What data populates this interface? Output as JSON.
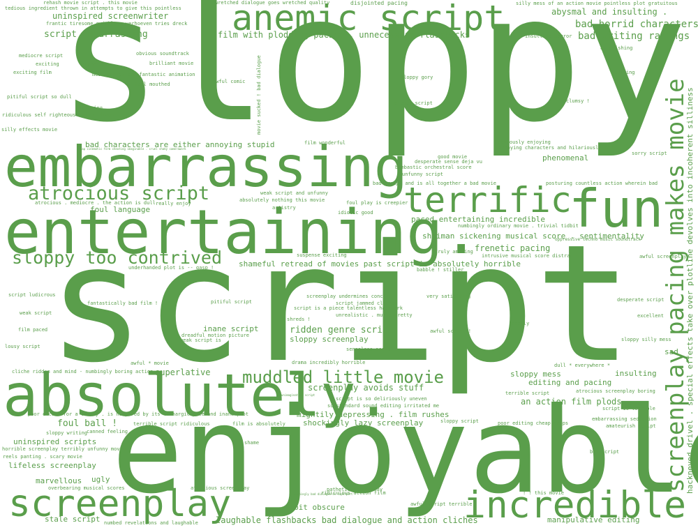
{
  "color": "#5a9e4b",
  "words": [
    "sloppy",
    "script",
    "enjoyable",
    "absolutely.",
    "entertaining.",
    "embarrassing",
    "anemic script",
    "fun",
    "terrific",
    "screenplay",
    "incredible",
    "screenplay pacing makes movie",
    "hackneyed drivel . special effects take over plotline devolves into incoherent silliness",
    "muddled little movie",
    "atrocious script",
    "sloppy too contrived",
    "movie sucked ! bad dialogue",
    "rehash movie script . this movie",
    "wretched dialogue goes wretched quality",
    "disjointed pacing",
    "silly mess of an action movie pointless plot gratuitous",
    "tedious ingredient thrown in attempts to give this pointless",
    "uninspired screenwriter",
    "abysmal and insulting .",
    "frantic tiresome quickly . verhoeven tries dreck",
    "bad horrid characters",
    "script embarrassing",
    "film with plodding pacing , unnecessary flashbacks",
    "insulting horror",
    "bad writing ratings",
    "mediocre script",
    "obvious soundtrack",
    "astonishing",
    "exciting",
    "paced",
    "brilliant movie",
    "exciting film",
    "mess script and fantastic animation",
    "editing",
    "awful comic",
    "foul mouthed",
    "sloppy gory",
    "pitiful script so dull",
    "clever script",
    "clumsy !",
    "sickening",
    "ridiculous self righteous finale drags",
    "silly effects movie",
    "film wonderful",
    "obviously enjoying",
    "bad characters are either annoying stupid",
    "annoying characters and hilariously bad",
    "sorry script",
    "cheap cinematic form cheating imaginable . cruel shaky camerawork",
    "good movie",
    "desperate sense deja vu",
    "bombastic orchestral score",
    "phenomenal",
    "unfunny script",
    "bad script and is all together a bad movie",
    "posturing countless action wherein bad",
    "weak script and unfunny",
    "foul language",
    "absolutely nothing this movie",
    "atrocious . mediocre . the action is dull",
    "really enjoy",
    "foul play is creepier",
    "artistry",
    "idiotic good",
    "paced entertaining incredible",
    "numbingly ordinary movie . trivial tidbit",
    "shaiman sickening musical score . sentimentality",
    "oppressive techno music soundtrack",
    "frenetic pacing",
    "truly amazing",
    "awful screenplay",
    "suspense exciting",
    "intrusive musical score distracts",
    "underhanded plot is -- gasp !",
    "shameful retread of movies past script is absolutely horrible",
    "babble ! stiller",
    "script ludicrous",
    "screenplay undermines conceit",
    "very satisfying",
    "desperate script",
    "fantastically bad film !",
    "pitiful script",
    "script jammed cliches",
    "script is a piece talentless hackwork",
    "unrealistic . music pretty",
    "weak script",
    "excellent",
    "shreds !",
    "really",
    "film paced",
    "inane script",
    "ridden genre script",
    "awful script !",
    "dreadful motion picture",
    "weak script is",
    "sloppy screenplay",
    "sloppy silly mess",
    "lousy script",
    "senseless script",
    "sad",
    "awful * movie",
    "drama incredibly horrible",
    "dull * everywhere *",
    "cliche ridden and mind - numbingly boring action",
    "superlative",
    "sloppy mess",
    "insulting",
    "editing and pacing",
    "screenplay avoids stuff",
    "terrible script",
    "atrocious screenplay boring",
    "unimaginative script",
    "script is so deliriously uneven",
    "an action film plods",
    "substandard sound editing irritated me",
    "script is terrible",
    "poor excuse for a comedy . is hampered by its lethargic pace and inane plot",
    "mightily depressing . film rushes",
    "embarrassing seduction",
    "foul ball !",
    "terrible script ridiculous",
    "film is absolutely",
    "shockingly lazy screenplay",
    "sloppy script",
    "poor editing cheap props",
    "amateurish script",
    "sloppy writing",
    "canned feeling",
    "uninspired scripts",
    "shame",
    "horrible screenplay terribly unfunny movie",
    "reels panting . scary movie",
    "bad script",
    "lifeless screenplay",
    "marvellous",
    "ugly",
    "overbearing musical scores",
    "atrocious screenplay",
    "pathetic screenplay",
    "numbingly bad dialogue in superpart",
    "ridiculous action film",
    "bit obscure",
    "! ! this movie",
    "awful script terrible",
    "stale script",
    "numbed revelations and laughable",
    "laughable flashbacks bad dialogue and action cliches",
    "manipulative editing"
  ]
}
